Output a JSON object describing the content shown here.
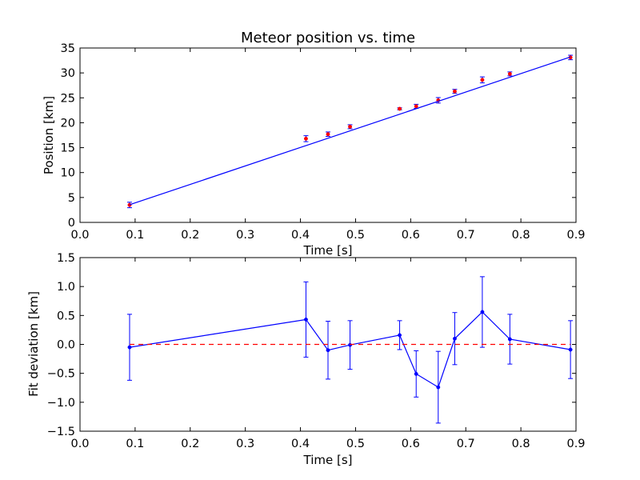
{
  "chart_data": [
    {
      "type": "scatter",
      "title": "Meteor position vs. time",
      "xlabel": "Time [s]",
      "ylabel": "Position [km]",
      "xlim": [
        0.0,
        0.9
      ],
      "ylim": [
        0,
        35
      ],
      "xticks": [
        "0.0",
        "0.1",
        "0.2",
        "0.3",
        "0.4",
        "0.5",
        "0.6",
        "0.7",
        "0.8",
        "0.9"
      ],
      "yticks": [
        "0",
        "5",
        "10",
        "15",
        "20",
        "25",
        "30",
        "35"
      ],
      "grid": false,
      "series": [
        {
          "kind": "errorbar-points",
          "color": "#ff0000",
          "errcolor": "#0000ff",
          "x": [
            0.09,
            0.41,
            0.45,
            0.49,
            0.58,
            0.61,
            0.65,
            0.68,
            0.73,
            0.78,
            0.89
          ],
          "y": [
            3.5,
            16.8,
            17.7,
            19.2,
            22.8,
            23.3,
            24.5,
            26.3,
            28.6,
            29.8,
            33.1
          ],
          "yerr": [
            0.55,
            0.6,
            0.45,
            0.4,
            0.2,
            0.4,
            0.55,
            0.4,
            0.6,
            0.4,
            0.45
          ]
        },
        {
          "kind": "line",
          "color": "#0000ff",
          "x": [
            0.09,
            0.89
          ],
          "y": [
            3.55,
            33.2
          ]
        }
      ]
    },
    {
      "type": "line",
      "title": "",
      "xlabel": "Time [s]",
      "ylabel": "Fit deviation [km]",
      "xlim": [
        0.0,
        0.9
      ],
      "ylim": [
        -1.5,
        1.5
      ],
      "xticks": [
        "0.0",
        "0.1",
        "0.2",
        "0.3",
        "0.4",
        "0.5",
        "0.6",
        "0.7",
        "0.8",
        "0.9"
      ],
      "yticks": [
        "1.5",
        "1.0",
        "0.5",
        "0.0",
        "−0.5",
        "−1.0",
        "−1.5"
      ],
      "grid": false,
      "series": [
        {
          "kind": "line-errorbar",
          "color": "#0000ff",
          "x": [
            0.09,
            0.41,
            0.45,
            0.49,
            0.58,
            0.61,
            0.65,
            0.68,
            0.73,
            0.78,
            0.89
          ],
          "y": [
            -0.05,
            0.43,
            -0.1,
            -0.01,
            0.16,
            -0.51,
            -0.74,
            0.1,
            0.56,
            0.09,
            -0.09
          ],
          "yerr": [
            0.57,
            0.65,
            0.5,
            0.42,
            0.25,
            0.4,
            0.62,
            0.45,
            0.61,
            0.43,
            0.5
          ]
        },
        {
          "kind": "dashed-line",
          "color": "#ff0000",
          "x": [
            0.09,
            0.89
          ],
          "y": [
            0.0,
            0.0
          ]
        }
      ]
    }
  ]
}
